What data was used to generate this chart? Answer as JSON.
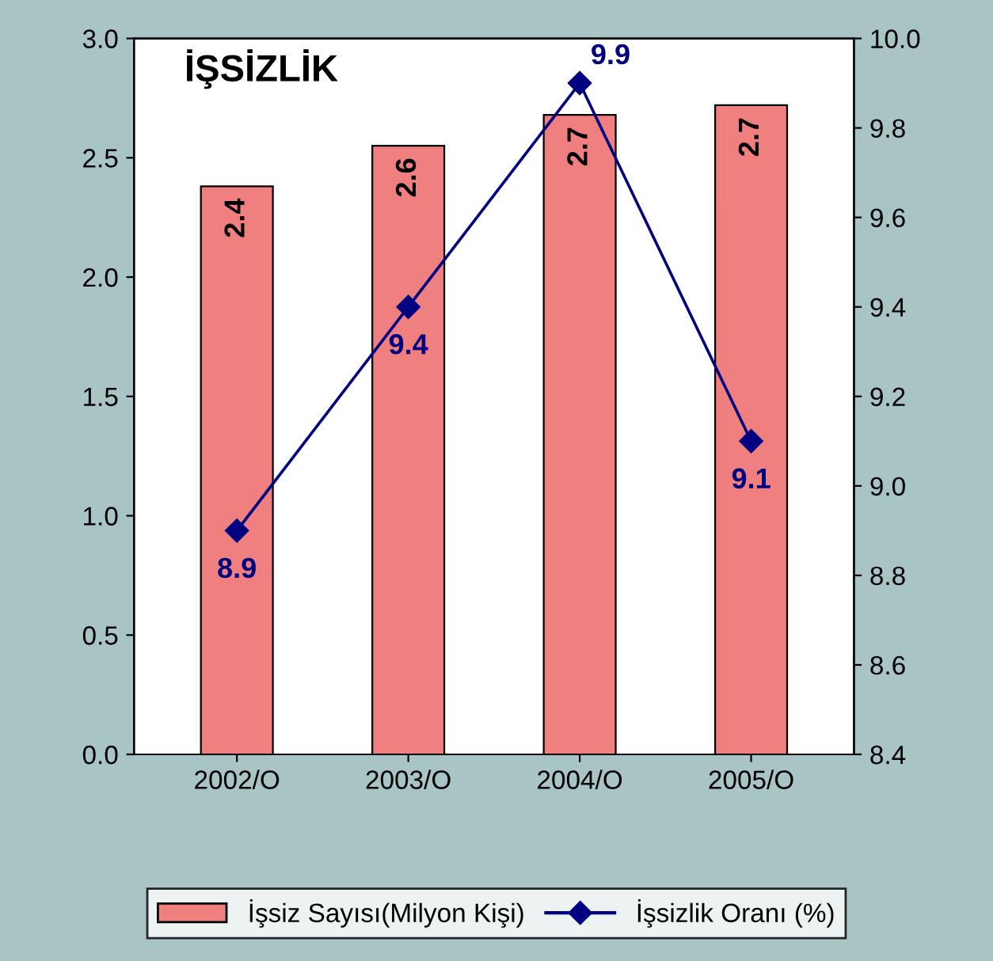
{
  "chart_data": {
    "type": "bar",
    "title": "İŞSİZLİK",
    "categories": [
      "2002/O",
      "2003/O",
      "2004/O",
      "2005/O"
    ],
    "series": [
      {
        "name": "İşsiz Sayısı(Milyon Kişi)",
        "color": "#f08080",
        "values": [
          2.38,
          2.55,
          2.68,
          2.72
        ],
        "value_labels": [
          "2.4",
          "2.6",
          "2.7",
          "2.7"
        ]
      },
      {
        "name": "İşsizlik Oranı (%)",
        "type": "line",
        "axis": "y2",
        "color": "#000080",
        "values": [
          8.9,
          9.4,
          9.9,
          9.1
        ],
        "value_labels": [
          "8.9",
          "9.4",
          "9.9",
          "9.1"
        ],
        "marker": "diamond"
      }
    ],
    "ylim": [
      0,
      3
    ],
    "yticks": [
      {
        "value": 0,
        "label": "0.0"
      },
      {
        "value": 0.5,
        "label": "0.5"
      },
      {
        "value": 1,
        "label": "1.0"
      },
      {
        "value": 1.5,
        "label": "1.5"
      },
      {
        "value": 2,
        "label": "2.0"
      },
      {
        "value": 2.5,
        "label": "2.5"
      },
      {
        "value": 3,
        "label": "3.0"
      }
    ],
    "y2lim": [
      8.4,
      10.0
    ],
    "y2ticks": [
      {
        "value": 8.4,
        "label": "8.4"
      },
      {
        "value": 8.6,
        "label": "8.6"
      },
      {
        "value": 8.8,
        "label": "8.8"
      },
      {
        "value": 9.0,
        "label": "9.0"
      },
      {
        "value": 9.2,
        "label": "9.2"
      },
      {
        "value": 9.4,
        "label": "9.4"
      },
      {
        "value": 9.6,
        "label": "9.6"
      },
      {
        "value": 9.8,
        "label": "9.8"
      },
      {
        "value": 10.0,
        "label": "10.0"
      }
    ],
    "grid": false,
    "legend": "bottom"
  }
}
